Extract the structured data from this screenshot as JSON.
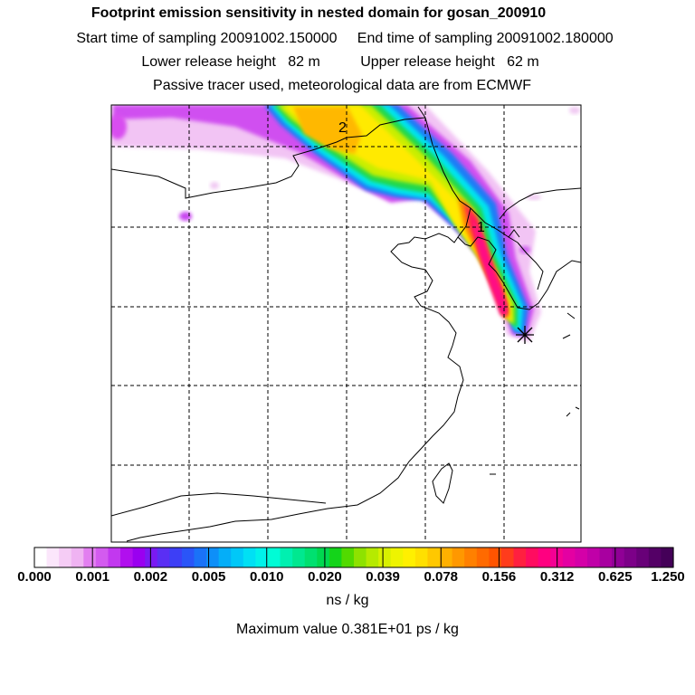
{
  "header": {
    "title": "Footprint emission sensitivity in nested domain for gosan_200910",
    "line2": "Start time of sampling 20091002.150000     End time of sampling 20091002.180000",
    "line3": "Lower release height   82 m          Upper release height   62 m",
    "line4": "Passive tracer used, meteorological data are from ECMWF"
  },
  "map": {
    "markers": [
      "2",
      "1"
    ],
    "receptor_icon": "receptor-star-icon"
  },
  "colorbar": {
    "tick_labels": [
      "0.000",
      "0.001",
      "0.002",
      "0.005",
      "0.010",
      "0.020",
      "0.039",
      "0.078",
      "0.156",
      "0.312",
      "0.625",
      "1.250"
    ],
    "colors": [
      "#ffffff",
      "#fbe6fb",
      "#f5ccf5",
      "#efb3f2",
      "#e27ff0",
      "#d35bef",
      "#c238ef",
      "#b10fee",
      "#9a00f0",
      "#7a1af2",
      "#5a2ff4",
      "#3d3ff6",
      "#2a55f8",
      "#1a72f8",
      "#0e8ff8",
      "#05aef8",
      "#00c8f8",
      "#00e0f4",
      "#00f2ea",
      "#00fcd6",
      "#00f0b0",
      "#00e890",
      "#00e070",
      "#00d850",
      "#14d41a",
      "#52da00",
      "#8ee200",
      "#b6ea00",
      "#d8f000",
      "#eef400",
      "#fff000",
      "#ffe000",
      "#ffc800",
      "#ffb000",
      "#ff9800",
      "#ff8000",
      "#ff6a00",
      "#ff5400",
      "#ff3c1c",
      "#ff2040",
      "#ff0c60",
      "#ff0080",
      "#f40094",
      "#e400a2",
      "#d400a8",
      "#c000a8",
      "#a800a0",
      "#900096",
      "#7c0088",
      "#680078",
      "#540066",
      "#440058"
    ],
    "units": "ns / kg",
    "max_value": "Maximum value  0.381E+01 ps / kg"
  }
}
